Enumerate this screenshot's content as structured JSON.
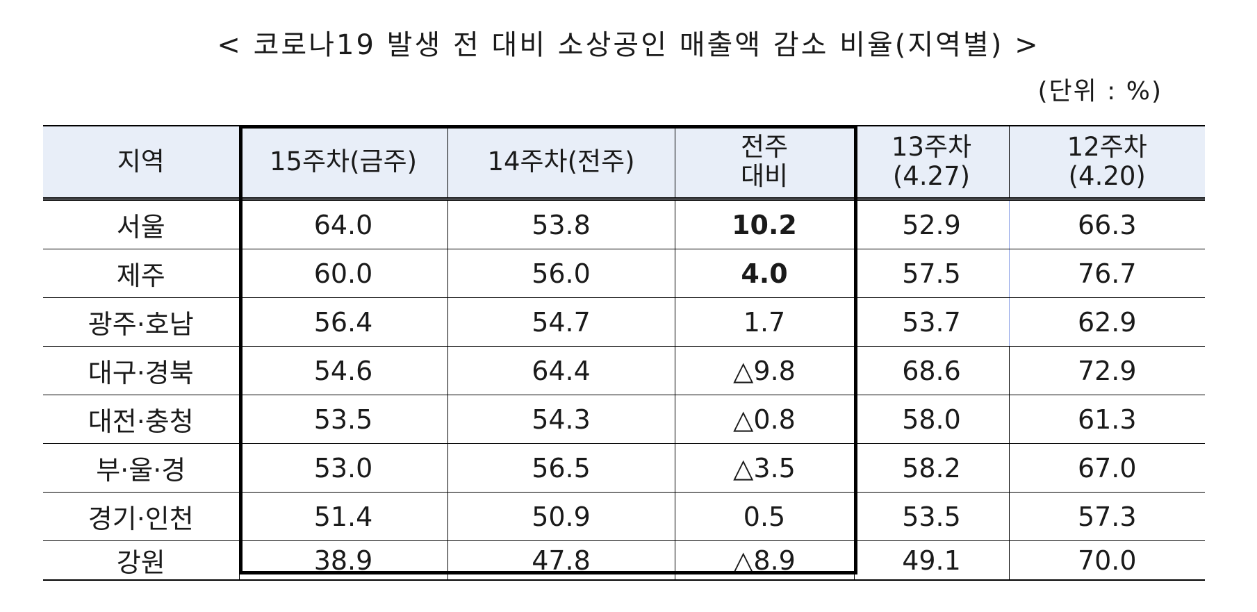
{
  "title": "< 코로나19 발생 전 대비 소상공인 매출액 감소 비율(지역별) >",
  "unit": "(단위 : %)",
  "table": {
    "headers": [
      {
        "line1": "지역",
        "line2": ""
      },
      {
        "line1": "15주차(금주)",
        "line2": ""
      },
      {
        "line1": "14주차(전주)",
        "line2": ""
      },
      {
        "line1": "전주",
        "line2": "대비"
      },
      {
        "line1": "13주차",
        "line2": "(4.27)"
      },
      {
        "line1": "12주차",
        "line2": "(4.20)"
      }
    ],
    "rows": [
      {
        "region": "서울",
        "w15": "64.0",
        "w14": "53.8",
        "diff": "10.2",
        "w13": "52.9",
        "w12": "66.3"
      },
      {
        "region": "제주",
        "w15": "60.0",
        "w14": "56.0",
        "diff": "4.0",
        "w13": "57.5",
        "w12": "76.7"
      },
      {
        "region": "광주·호남",
        "w15": "56.4",
        "w14": "54.7",
        "diff": "1.7",
        "w13": "53.7",
        "w12": "62.9"
      },
      {
        "region": "대구·경북",
        "w15": "54.6",
        "w14": "64.4",
        "diff": "△9.8",
        "w13": "68.6",
        "w12": "72.9"
      },
      {
        "region": "대전·충청",
        "w15": "53.5",
        "w14": "54.3",
        "diff": "△0.8",
        "w13": "58.0",
        "w12": "61.3"
      },
      {
        "region": "부·울·경",
        "w15": "53.0",
        "w14": "56.5",
        "diff": "△3.5",
        "w13": "58.2",
        "w12": "67.0"
      },
      {
        "region": "경기·인천",
        "w15": "51.4",
        "w14": "50.9",
        "diff": "0.5",
        "w13": "53.5",
        "w12": "57.3"
      },
      {
        "region": "강원",
        "w15": "38.9",
        "w14": "47.8",
        "diff": "△8.9",
        "w13": "49.1",
        "w12": "70.0"
      }
    ]
  }
}
